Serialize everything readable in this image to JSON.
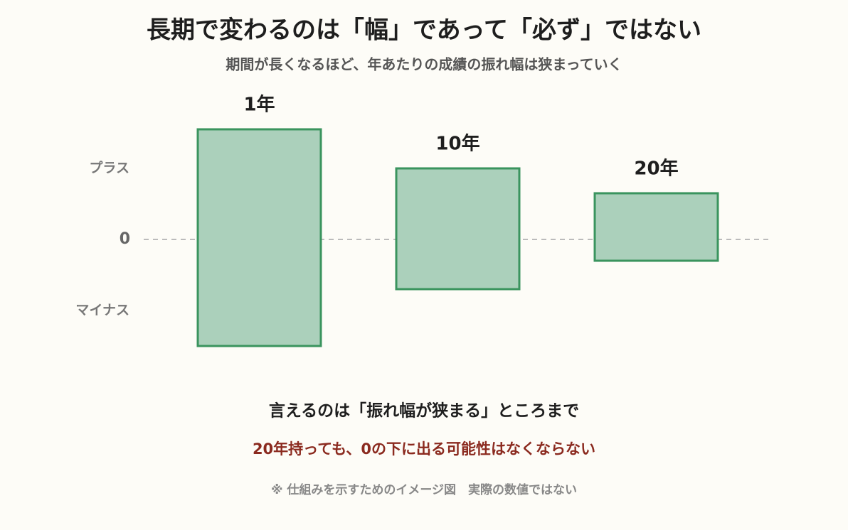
{
  "chart_data": {
    "type": "range_bar",
    "title": "長期で変わるのは「幅」であって「必ず」ではない",
    "subtitle": "期間が長くなるほど、年あたりの成績の振れ幅は狭まっていく",
    "categories": [
      "1年",
      "10年",
      "20年"
    ],
    "low": [
      -15,
      -7,
      -3
    ],
    "high": [
      15.5,
      10,
      6.5
    ],
    "color": "#abd0bb",
    "edge_color": "#3a945e",
    "ylim": [
      -16,
      17
    ],
    "yticks": [
      {
        "value": 10,
        "label": "プラス"
      },
      0,
      {
        "value": -10,
        "label": "マイナス"
      }
    ],
    "zero_line": true,
    "notes": [
      "言えるのは「振れ幅が狭まる」ところまで",
      "20年持っても、0の下に出る可能性はなくならない",
      "※ 仕組みを示すためのイメージ図　実際の数値ではない"
    ]
  }
}
